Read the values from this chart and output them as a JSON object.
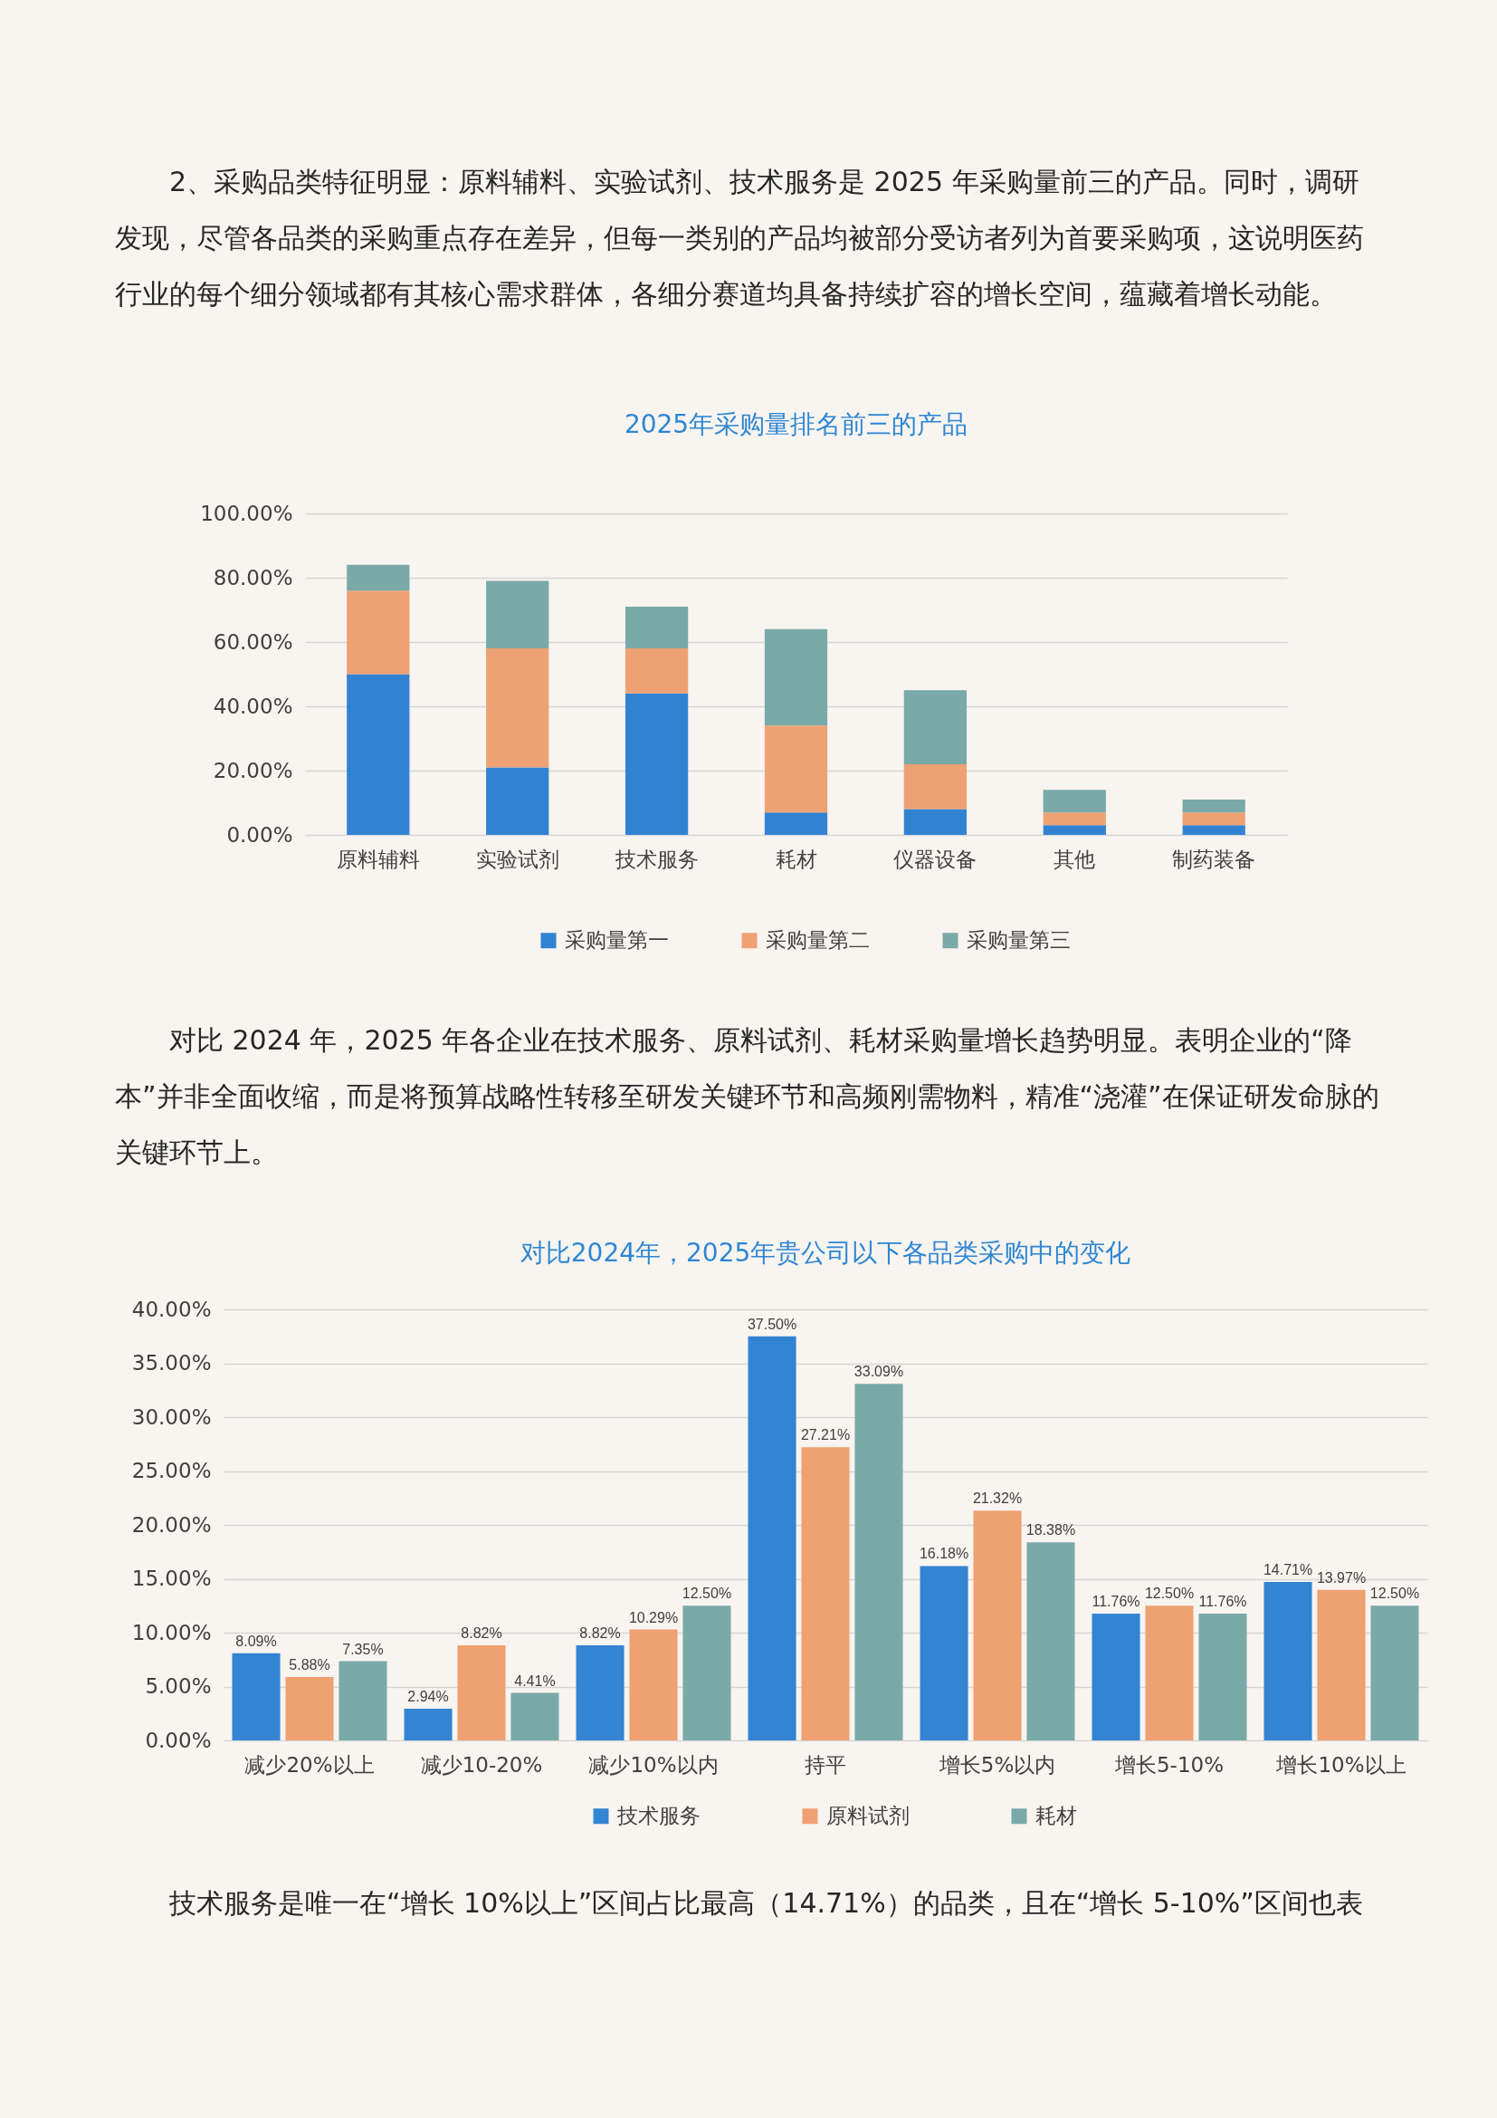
{
  "chart_data": [
    {
      "type": "bar",
      "title": "2025年采购量排名前三的产品",
      "categories": [
        "原料辅料",
        "实验试剂",
        "技术服务",
        "耗材",
        "仪器设备",
        "其他",
        "制药装备"
      ],
      "series": [
        {
          "name": "采购量第一",
          "color": "#3183d2",
          "values": [
            50,
            21,
            44,
            7,
            8,
            3,
            3
          ]
        },
        {
          "name": "采购量第二",
          "color": "#eea172",
          "values": [
            26,
            37,
            14,
            27,
            14,
            4,
            4
          ]
        },
        {
          "name": "采购量第三",
          "color": "#79aaa8",
          "values": [
            8,
            21,
            13,
            30,
            23,
            7,
            4
          ]
        }
      ],
      "stacked": true,
      "ylim": [
        0,
        100
      ],
      "yticks": [
        {
          "value": 0,
          "label": "0.00%"
        },
        {
          "value": 20,
          "label": "20.00%"
        },
        {
          "value": 40,
          "label": "40.00%"
        },
        {
          "value": 60,
          "label": "60.00%"
        },
        {
          "value": 80,
          "label": "80.00%"
        },
        {
          "value": 100,
          "label": "100.00%"
        }
      ],
      "grid": "y",
      "legend": "bottom",
      "annotations": [
        "2、采购品类特征明显：原料辅料、实验试剂、技术服务是 2025 年采购量前三的产品。同时，调研发现，尽管各品类的采购重点存在差异，但每一类别的产品均被部分受访者列为首要采购项，这说明医药行业的每个细分领域都有其核心需求群体，各细分赛道均具备持续扩容的增长空间，蕴藏着增长动能。"
      ]
    },
    {
      "type": "bar",
      "title": "对比2024年，2025年贵公司以下各品类采购中的变化",
      "categories": [
        "减少20%以上",
        "减少10-20%",
        "减少10%以内",
        "持平",
        "增长5%以内",
        "增长5-10%",
        "增长10%以上"
      ],
      "series": [
        {
          "name": "技术服务",
          "color": "#3384d3",
          "values": [
            8.09,
            2.94,
            8.82,
            37.5,
            16.18,
            11.76,
            14.71
          ],
          "value_labels": [
            "8.09%",
            "2.94%",
            "8.82%",
            "37.50%",
            "16.18%",
            "11.76%",
            "14.71%"
          ]
        },
        {
          "name": "原料试剂",
          "color": "#efa172",
          "values": [
            5.88,
            8.82,
            10.29,
            27.21,
            21.32,
            12.5,
            13.97
          ],
          "value_labels": [
            "5.88%",
            "8.82%",
            "10.29%",
            "27.21%",
            "21.32%",
            "12.50%",
            "13.97%"
          ]
        },
        {
          "name": "耗材",
          "color": "#79aaa8",
          "values": [
            7.35,
            4.41,
            12.5,
            33.09,
            18.38,
            11.76,
            12.5
          ],
          "value_labels": [
            "7.35%",
            "4.41%",
            "12.50%",
            "33.09%",
            "18.38%",
            "11.76%",
            "12.50%"
          ]
        }
      ],
      "ylim": [
        0,
        40
      ],
      "yticks": [
        {
          "value": 0,
          "label": "0.00%"
        },
        {
          "value": 5,
          "label": "5.00%"
        },
        {
          "value": 10,
          "label": "10.00%"
        },
        {
          "value": 15,
          "label": "15.00%"
        },
        {
          "value": 20,
          "label": "20.00%"
        },
        {
          "value": 25,
          "label": "25.00%"
        },
        {
          "value": 30,
          "label": "30.00%"
        },
        {
          "value": 35,
          "label": "35.00%"
        },
        {
          "value": 40,
          "label": "40.00%"
        }
      ],
      "grid": "y",
      "legend": "bottom",
      "annotations": [
        "对比 2024 年，2025 年各企业在技术服务、原料试剂、耗材采购量增长趋势明显。表明企业的“降本”并非全面收缩，而是将预算战略性转移至研发关键环节和高频刚需物料，精准“浇灌”在保证研发命脉的关键环节上。",
        "技术服务是唯一在“增长 10%以上”区间占比最高（14.71%）的品类，且在“增长 5-10%”区间也表"
      ]
    }
  ]
}
